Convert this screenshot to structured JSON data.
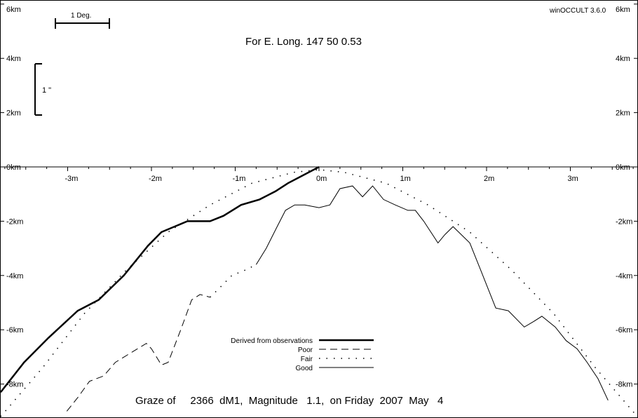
{
  "app": {
    "version": "winOCCULT 3.6.0",
    "heading": "For E. Long.  147 50  0.53",
    "footer": "Graze of     2366  dM1,  Magnitude   1.1,  on Friday  2007  May   4"
  },
  "scale_bars": {
    "degree": "1 Deg.",
    "arcsec": "1 \""
  },
  "legend": {
    "items": [
      {
        "label": "Derived from observations",
        "style": "thick"
      },
      {
        "label": "Poor",
        "style": "dash"
      },
      {
        "label": "Fair",
        "style": "dot"
      },
      {
        "label": "Good",
        "style": "thin"
      }
    ]
  },
  "chart_data": {
    "type": "line",
    "title": "For E. Long.  147 50  0.53",
    "x_ticks": [
      "-3m",
      "-2m",
      "-1m",
      "0m",
      "1m",
      "2m",
      "3m"
    ],
    "x_tick_values": [
      -3,
      -2,
      -1,
      0,
      1,
      2,
      3
    ],
    "y_ticks_left": [
      "6km",
      "4km",
      "2km",
      "0km",
      "-2km",
      "-4km",
      "-6km",
      "-8km"
    ],
    "y_ticks_right": [
      "6km",
      "4km",
      "2km",
      "0km",
      "-2km",
      "-4km",
      "-6km",
      "-8km"
    ],
    "y_tick_values": [
      6,
      4,
      2,
      0,
      -2,
      -4,
      -6,
      -8
    ],
    "xlim": [
      -3.8,
      3.8
    ],
    "ylim": [
      -9.2,
      6.2
    ],
    "series": [
      {
        "name": "Derived from observations",
        "style": "thick",
        "x": [
          -3.8,
          -3.52,
          -3.23,
          -2.88,
          -2.63,
          -2.33,
          -2.04,
          -1.88,
          -1.57,
          -1.3,
          -1.14,
          -0.93,
          -0.71,
          -0.52,
          -0.37,
          0.0
        ],
        "y": [
          -8.3,
          -7.2,
          -6.3,
          -5.3,
          -4.9,
          -4.0,
          -2.9,
          -2.4,
          -2.0,
          -2.0,
          -1.8,
          -1.4,
          -1.2,
          -0.9,
          -0.6,
          0.0
        ]
      },
      {
        "name": "Fair",
        "style": "dot",
        "x": [
          -3.8,
          -3.3,
          -2.8,
          -2.3,
          -1.8,
          -1.3,
          -0.8,
          -0.3,
          0.0,
          0.3,
          0.8,
          1.3,
          1.8,
          2.3,
          2.8,
          3.3,
          3.8
        ],
        "y": [
          -9.2,
          -7.4,
          -5.4,
          -3.8,
          -2.4,
          -1.4,
          -0.6,
          -0.2,
          -0.1,
          -0.2,
          -0.6,
          -1.4,
          -2.4,
          -3.8,
          -5.4,
          -7.4,
          -9.2
        ]
      },
      {
        "name": "Poor",
        "style": "dash",
        "x": [
          -3.01,
          -2.88,
          -2.74,
          -2.57,
          -2.43,
          -2.22,
          -2.06,
          -2.0,
          -1.88,
          -1.8,
          -1.65,
          -1.52,
          -1.42,
          -1.3
        ],
        "y": [
          -9.0,
          -8.5,
          -7.9,
          -7.7,
          -7.2,
          -6.8,
          -6.5,
          -6.7,
          -7.3,
          -7.2,
          -6.0,
          -4.9,
          -4.7,
          -4.8
        ]
      },
      {
        "name": "Fair",
        "style": "dot",
        "x": [
          -1.3,
          -1.2,
          -1.04,
          -0.88,
          -0.75
        ],
        "y": [
          -4.8,
          -4.5,
          -4.0,
          -3.8,
          -3.6
        ]
      },
      {
        "name": "Good",
        "style": "thin",
        "x": [
          -0.75,
          -0.63,
          -0.5,
          -0.4,
          -0.29,
          -0.17,
          0.0,
          0.13,
          0.25,
          0.4,
          0.52,
          0.64,
          0.77,
          0.91,
          1.06,
          1.15,
          1.25,
          1.42,
          1.5,
          1.6,
          1.8,
          1.93,
          2.11,
          2.26,
          2.45,
          2.56,
          2.66,
          2.82,
          2.95,
          3.08,
          3.2,
          3.33,
          3.45
        ],
        "y": [
          -3.6,
          -3.0,
          -2.2,
          -1.6,
          -1.4,
          -1.4,
          -1.5,
          -1.4,
          -0.8,
          -0.7,
          -1.1,
          -0.7,
          -1.2,
          -1.4,
          -1.6,
          -1.6,
          -2.0,
          -2.8,
          -2.5,
          -2.2,
          -2.8,
          -3.8,
          -5.2,
          -5.3,
          -5.9,
          -5.7,
          -5.5,
          -5.9,
          -6.4,
          -6.7,
          -7.2,
          -7.8,
          -8.6
        ]
      }
    ],
    "grid": false,
    "legend_position": "bottom-center"
  }
}
